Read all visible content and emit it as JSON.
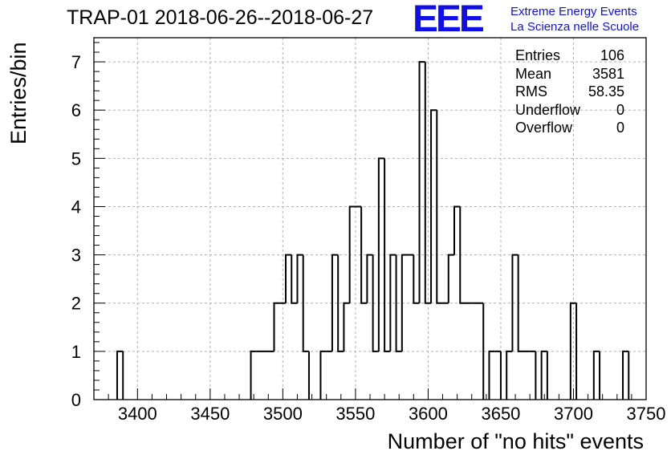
{
  "title": "TRAP-01 2018-06-26--2018-06-27",
  "logo": {
    "mark": "EEE",
    "line1": "Extreme Energy Events",
    "line2": "La Scienza nelle Scuole",
    "color": "#1010e6"
  },
  "stats": [
    {
      "label": "Entries",
      "value": "106"
    },
    {
      "label": "Mean",
      "value": "3581"
    },
    {
      "label": "RMS",
      "value": "58.35"
    },
    {
      "label": "Underflow",
      "value": "0"
    },
    {
      "label": "Overflow",
      "value": "0"
    }
  ],
  "chart_data": {
    "type": "histogram",
    "xlabel": "Number of \"no hits\" events",
    "ylabel": "Entries/bin",
    "xlim": [
      3370,
      3750
    ],
    "ylim": [
      0,
      7.5
    ],
    "bin_width": 4,
    "xticks": [
      3400,
      3450,
      3500,
      3550,
      3600,
      3650,
      3700,
      3750
    ],
    "yticks": [
      0,
      1,
      2,
      3,
      4,
      5,
      6,
      7
    ],
    "grid": true,
    "line_color": "#000000",
    "bins": [
      {
        "x": 3386,
        "y": 1
      },
      {
        "x": 3478,
        "y": 1
      },
      {
        "x": 3482,
        "y": 1
      },
      {
        "x": 3486,
        "y": 1
      },
      {
        "x": 3490,
        "y": 1
      },
      {
        "x": 3494,
        "y": 2
      },
      {
        "x": 3498,
        "y": 2
      },
      {
        "x": 3502,
        "y": 3
      },
      {
        "x": 3506,
        "y": 2
      },
      {
        "x": 3510,
        "y": 3
      },
      {
        "x": 3514,
        "y": 1
      },
      {
        "x": 3526,
        "y": 1
      },
      {
        "x": 3530,
        "y": 1
      },
      {
        "x": 3534,
        "y": 3
      },
      {
        "x": 3538,
        "y": 1
      },
      {
        "x": 3542,
        "y": 2
      },
      {
        "x": 3546,
        "y": 4
      },
      {
        "x": 3550,
        "y": 4
      },
      {
        "x": 3554,
        "y": 2
      },
      {
        "x": 3558,
        "y": 3
      },
      {
        "x": 3562,
        "y": 1
      },
      {
        "x": 3566,
        "y": 5
      },
      {
        "x": 3570,
        "y": 1
      },
      {
        "x": 3574,
        "y": 3
      },
      {
        "x": 3578,
        "y": 1
      },
      {
        "x": 3582,
        "y": 3
      },
      {
        "x": 3586,
        "y": 3
      },
      {
        "x": 3590,
        "y": 2
      },
      {
        "x": 3594,
        "y": 7
      },
      {
        "x": 3598,
        "y": 2
      },
      {
        "x": 3602,
        "y": 6
      },
      {
        "x": 3606,
        "y": 2
      },
      {
        "x": 3610,
        "y": 2
      },
      {
        "x": 3614,
        "y": 3
      },
      {
        "x": 3618,
        "y": 4
      },
      {
        "x": 3622,
        "y": 2
      },
      {
        "x": 3626,
        "y": 2
      },
      {
        "x": 3630,
        "y": 2
      },
      {
        "x": 3634,
        "y": 2
      },
      {
        "x": 3642,
        "y": 1
      },
      {
        "x": 3646,
        "y": 1
      },
      {
        "x": 3654,
        "y": 1
      },
      {
        "x": 3658,
        "y": 3
      },
      {
        "x": 3662,
        "y": 1
      },
      {
        "x": 3666,
        "y": 1
      },
      {
        "x": 3670,
        "y": 1
      },
      {
        "x": 3678,
        "y": 1
      },
      {
        "x": 3698,
        "y": 2
      },
      {
        "x": 3714,
        "y": 1
      },
      {
        "x": 3734,
        "y": 1
      }
    ]
  }
}
